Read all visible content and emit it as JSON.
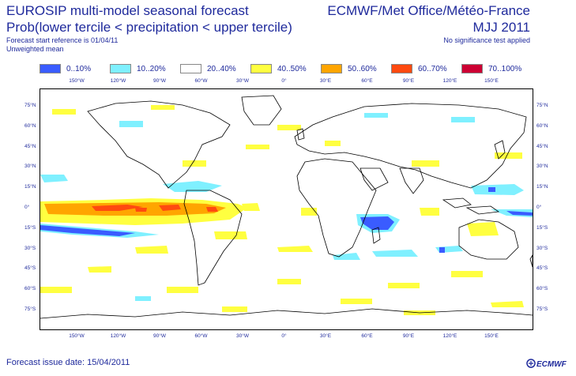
{
  "header": {
    "title_left": "EUROSIP multi-model seasonal forecast",
    "subtitle_left": "Prob(lower tercile < precipitation < upper tercile)",
    "forecast_start": "Forecast start reference is 01/04/11",
    "weighting": "Unweighted mean",
    "title_right": "ECMWF/Met Office/Météo-France",
    "period": "MJJ 2011",
    "significance": "No significance test applied"
  },
  "legend": [
    {
      "label": "0..10%",
      "color": "#3a5cff"
    },
    {
      "label": "10..20%",
      "color": "#7ff0ff"
    },
    {
      "label": "20..40%",
      "color": "#ffffff"
    },
    {
      "label": "40..50%",
      "color": "#ffff40"
    },
    {
      "label": "50..60%",
      "color": "#ffa500"
    },
    {
      "label": "60..70%",
      "color": "#ff4a10"
    },
    {
      "label": "70..100%",
      "color": "#cc0033"
    }
  ],
  "map": {
    "lon_labels": [
      "150°W",
      "120°W",
      "90°W",
      "60°W",
      "30°W",
      "0°",
      "30°E",
      "60°E",
      "90°E",
      "120°E",
      "150°E"
    ],
    "lat_labels": [
      "75°N",
      "60°N",
      "45°N",
      "30°N",
      "15°N",
      "0°",
      "15°S",
      "30°S",
      "45°S",
      "60°S",
      "75°S"
    ]
  },
  "footer": {
    "issue_date": "Forecast issue date: 15/04/2011",
    "logo_text": "ECMWF"
  }
}
